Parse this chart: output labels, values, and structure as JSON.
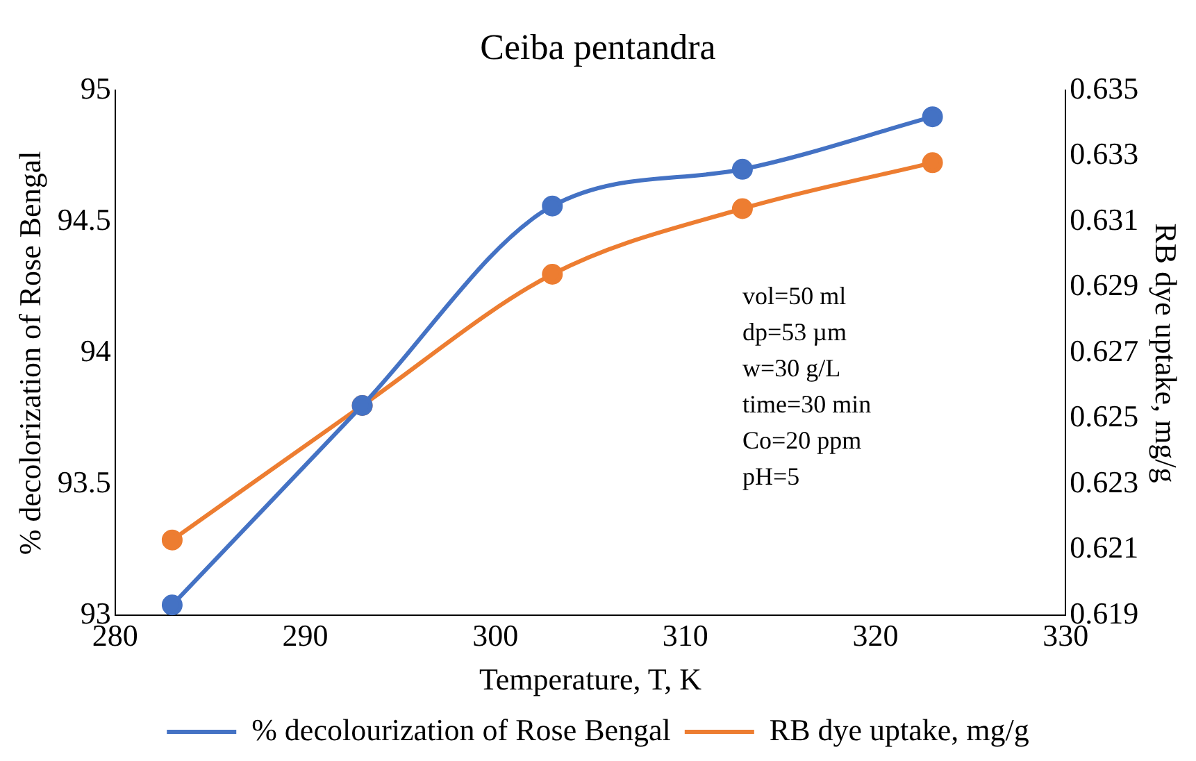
{
  "chart_data": {
    "type": "line",
    "title": "Ceiba pentandra",
    "xlabel": "Temperature, T, K",
    "ylabel": "% decolorization of Rose Bengal",
    "y2label": "RB dye uptake, mg/g",
    "x": [
      283,
      293,
      303,
      313,
      323
    ],
    "series": [
      {
        "name": "% decolourization of Rose Bengal",
        "color": "#4472c4",
        "values": [
          93.04,
          93.8,
          94.56,
          94.7,
          94.9
        ]
      },
      {
        "name": "RB dye uptake, mg/g",
        "color": "#ed7d31",
        "axis": "y2",
        "values": [
          0.6213,
          0.6254,
          0.6294,
          0.6314,
          0.6328
        ]
      }
    ],
    "xlim": [
      280,
      330
    ],
    "xticks": [
      280,
      290,
      300,
      310,
      320,
      330
    ],
    "ylim": [
      93,
      95
    ],
    "yticks": [
      93,
      93.5,
      94,
      94.5,
      95
    ],
    "y2lim": [
      0.619,
      0.635
    ],
    "y2ticks": [
      0.619,
      0.621,
      0.623,
      0.625,
      0.627,
      0.629,
      0.631,
      0.633,
      0.635
    ],
    "annotations": [
      "vol=50 ml",
      "dp=53 µm",
      "w=30 g/L",
      "time=30 min",
      "Co=20 ppm",
      "pH=5"
    ],
    "legend": "bottom",
    "grid": false,
    "marker": "circle",
    "line_style": "solid"
  }
}
